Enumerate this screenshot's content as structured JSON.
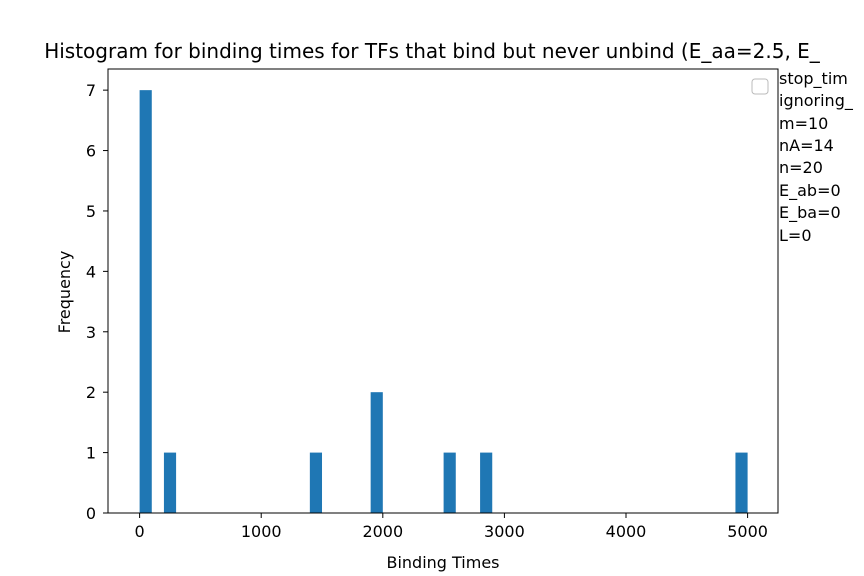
{
  "chart_data": {
    "type": "bar",
    "title": "Histogram for binding times for TFs that bind but never unbind (E_aa=2.5, E_",
    "xlabel": "Binding Times",
    "ylabel": "Frequency",
    "xlim": [
      -260,
      5250
    ],
    "ylim": [
      0,
      7.35
    ],
    "x_ticks": [
      0,
      1000,
      2000,
      3000,
      4000,
      5000
    ],
    "y_ticks": [
      0,
      1,
      2,
      3,
      4,
      5,
      6,
      7
    ],
    "bar_color": "#1f77b4",
    "bins": [
      {
        "x0": 0,
        "x1": 100,
        "value": 7
      },
      {
        "x0": 200,
        "x1": 300,
        "value": 1
      },
      {
        "x0": 1400,
        "x1": 1500,
        "value": 1
      },
      {
        "x0": 1900,
        "x1": 2000,
        "value": 2
      },
      {
        "x0": 2500,
        "x1": 2600,
        "value": 1
      },
      {
        "x0": 2800,
        "x1": 2900,
        "value": 1
      },
      {
        "x0": 4900,
        "x1": 5000,
        "value": 1
      }
    ],
    "legend": {
      "placement": "upper-right",
      "lines": [
        "stop_tim",
        "ignoring_",
        "m=10",
        "nA=14",
        "n=20",
        "E_ab=0",
        "E_ba=0",
        "L=0"
      ]
    }
  }
}
